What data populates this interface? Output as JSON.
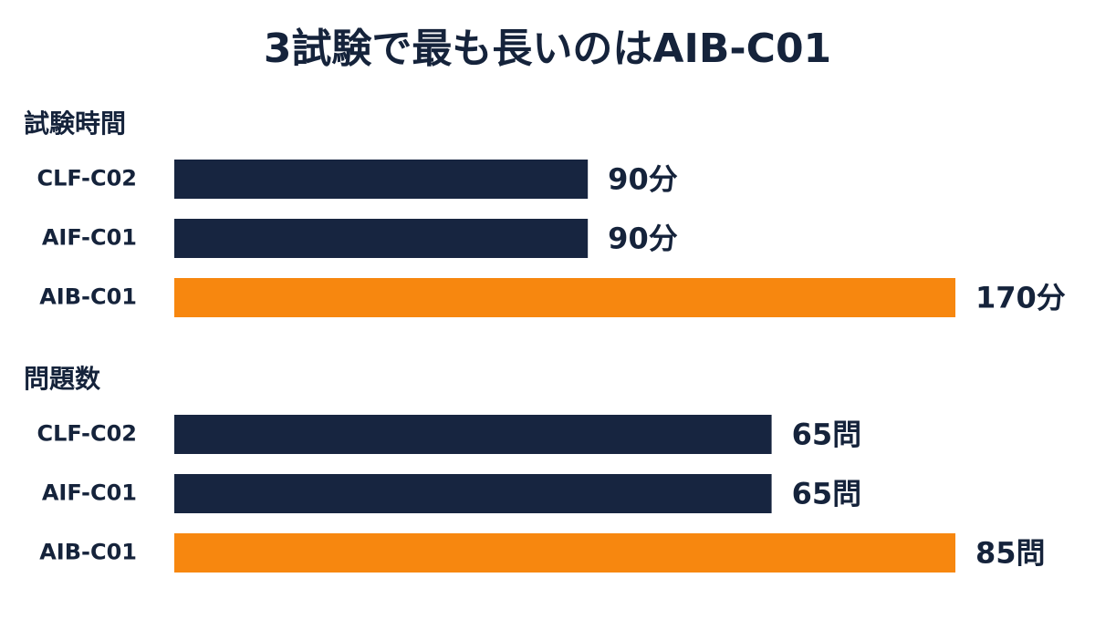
{
  "title": "3試験で最も長いのはAIB-C01",
  "chart_data": [
    {
      "type": "bar",
      "orientation": "horizontal",
      "title": "試験時間",
      "categories": [
        "CLF-C02",
        "AIF-C01",
        "AIB-C01"
      ],
      "values": [
        90,
        90,
        170
      ],
      "value_labels": [
        "90分",
        "90分",
        "170分"
      ],
      "colors": [
        "#172540",
        "#172540",
        "#f7870f"
      ]
    },
    {
      "type": "bar",
      "orientation": "horizontal",
      "title": "問題数",
      "categories": [
        "CLF-C02",
        "AIF-C01",
        "AIB-C01"
      ],
      "values": [
        65,
        65,
        85
      ],
      "value_labels": [
        "65問",
        "65問",
        "85問"
      ],
      "colors": [
        "#172540",
        "#172540",
        "#f7870f"
      ]
    }
  ]
}
